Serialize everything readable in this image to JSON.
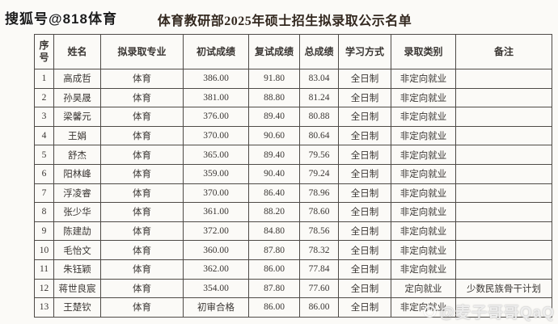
{
  "watermarks": {
    "top_left": "搜狐号@818体育",
    "bottom_right": "@麦子哥哥QaQ"
  },
  "title": "体育教研部2025年硕士招生拟录取公示名单",
  "table": {
    "headers": [
      "序号",
      "姓名",
      "拟录取专业",
      "初试成绩",
      "复试成绩",
      "总成绩",
      "学习方式",
      "录取类别",
      "备注"
    ],
    "rows": [
      [
        "1",
        "高成哲",
        "体育",
        "386.00",
        "91.80",
        "83.04",
        "全日制",
        "非定向就业",
        ""
      ],
      [
        "2",
        "孙昊晟",
        "体育",
        "381.00",
        "88.80",
        "81.24",
        "全日制",
        "非定向就业",
        ""
      ],
      [
        "3",
        "梁馨元",
        "体育",
        "376.00",
        "89.40",
        "80.88",
        "全日制",
        "非定向就业",
        ""
      ],
      [
        "4",
        "王娟",
        "体育",
        "370.00",
        "90.60",
        "80.64",
        "全日制",
        "非定向就业",
        ""
      ],
      [
        "5",
        "舒杰",
        "体育",
        "365.00",
        "89.40",
        "79.56",
        "全日制",
        "非定向就业",
        ""
      ],
      [
        "6",
        "阳林峰",
        "体育",
        "359.00",
        "90.40",
        "79.24",
        "全日制",
        "非定向就业",
        ""
      ],
      [
        "7",
        "浮凌睿",
        "体育",
        "370.00",
        "86.40",
        "78.96",
        "全日制",
        "非定向就业",
        ""
      ],
      [
        "8",
        "张少华",
        "体育",
        "361.00",
        "88.20",
        "78.60",
        "全日制",
        "非定向就业",
        ""
      ],
      [
        "9",
        "陈建劼",
        "体育",
        "372.00",
        "84.80",
        "78.56",
        "全日制",
        "非定向就业",
        ""
      ],
      [
        "10",
        "毛怡文",
        "体育",
        "360.00",
        "87.80",
        "78.32",
        "全日制",
        "非定向就业",
        ""
      ],
      [
        "11",
        "朱钰颖",
        "体育",
        "362.00",
        "86.00",
        "77.84",
        "全日制",
        "非定向就业",
        ""
      ],
      [
        "12",
        "蒋世良宸",
        "体育",
        "354.00",
        "87.80",
        "77.60",
        "全日制",
        "定向就业",
        "少数民族骨干计划"
      ],
      [
        "13",
        "王楚钦",
        "体育",
        "初审合格",
        "86.00",
        "86.00",
        "全日制",
        "非定向就业",
        ""
      ]
    ]
  }
}
